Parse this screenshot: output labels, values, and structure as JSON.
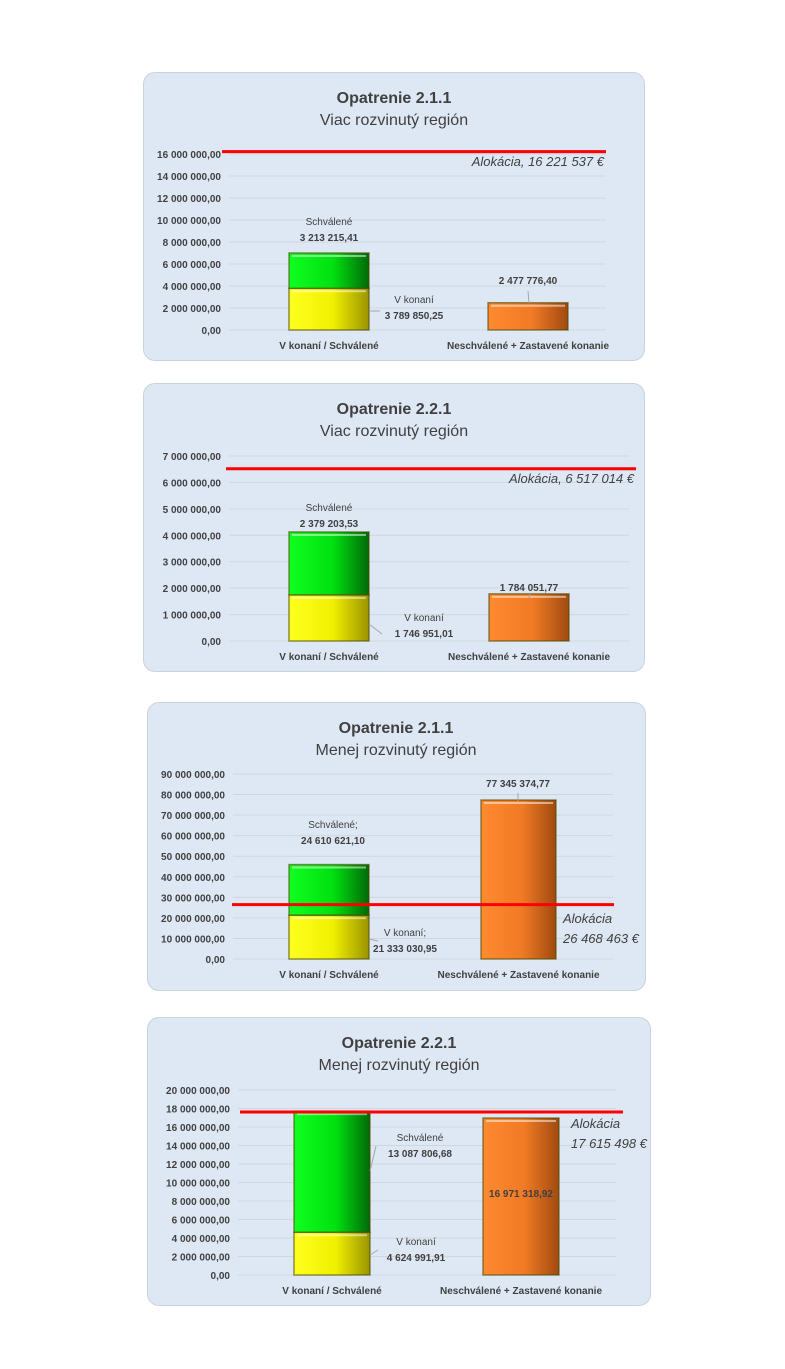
{
  "chart_data": [
    {
      "type": "bar",
      "title": "Opatrenie 2.1.1",
      "subtitle": "Viac rozvinutý región",
      "categories": [
        "V konaní / Schválené",
        "Neschválené + Zastavené konanie"
      ],
      "series": [
        {
          "name": "V konaní",
          "label_name": "V konaní",
          "label_value": "3 789 850,25",
          "values": [
            3789850.25,
            0
          ]
        },
        {
          "name": "Schválené",
          "label_name": "Schválené",
          "label_value": "3 213 215,41",
          "values": [
            3213215.41,
            0
          ]
        },
        {
          "name": "Neschválené + Zastavené konanie",
          "label_value": "2 477 776,40",
          "values": [
            0,
            2477776.4
          ]
        }
      ],
      "ylim": [
        0,
        16000000
      ],
      "ytick_step": 2000000,
      "yticks": [
        "0,00",
        "2 000 000,00",
        "4 000 000,00",
        "6 000 000,00",
        "8 000 000,00",
        "10 000 000,00",
        "12 000 000,00",
        "14 000 000,00",
        "16 000 000,00"
      ],
      "allocation": {
        "value": 16221537,
        "label_lines": [
          "Alokácia, 16 221 537 €"
        ]
      },
      "grid": true
    },
    {
      "type": "bar",
      "title": "Opatrenie 2.2.1",
      "subtitle": "Viac rozvinutý región",
      "categories": [
        "V konaní / Schválené",
        "Neschválené + Zastavené konanie"
      ],
      "series": [
        {
          "name": "V konaní",
          "label_name": "V konaní",
          "label_value": "1 746 951,01",
          "values": [
            1746951.01,
            0
          ]
        },
        {
          "name": "Schválené",
          "label_name": "Schválené",
          "label_value": "2 379 203,53",
          "values": [
            2379203.53,
            0
          ]
        },
        {
          "name": "Neschválené + Zastavené konanie",
          "label_value": "1 784 051,77",
          "values": [
            0,
            1784051.77
          ]
        }
      ],
      "ylim": [
        0,
        7000000
      ],
      "ytick_step": 1000000,
      "yticks": [
        "0,00",
        "1 000 000,00",
        "2 000 000,00",
        "3 000 000,00",
        "4 000 000,00",
        "5 000 000,00",
        "6 000 000,00",
        "7 000 000,00"
      ],
      "allocation": {
        "value": 6517014,
        "label_lines": [
          "Alokácia, 6 517 014 €"
        ]
      },
      "grid": true
    },
    {
      "type": "bar",
      "title": "Opatrenie 2.1.1",
      "subtitle": "Menej rozvinutý región",
      "categories": [
        "V konaní / Schválené",
        "Neschválené + Zastavené konanie"
      ],
      "series": [
        {
          "name": "V konaní",
          "label_name": "V konaní;",
          "label_value": "21 333 030,95",
          "values": [
            21333030.95,
            0
          ]
        },
        {
          "name": "Schválené",
          "label_name": "Schválené;",
          "label_value": "24 610 621,10",
          "values": [
            24610621.1,
            0
          ]
        },
        {
          "name": "Neschválené + Zastavené konanie",
          "label_value": "77 345 374,77",
          "values": [
            0,
            77345374.77
          ]
        }
      ],
      "ylim": [
        0,
        90000000
      ],
      "ytick_step": 10000000,
      "yticks": [
        "0,00",
        "10 000 000,00",
        "20 000 000,00",
        "30 000 000,00",
        "40 000 000,00",
        "50 000 000,00",
        "60 000 000,00",
        "70 000 000,00",
        "80 000 000,00",
        "90 000 000,00"
      ],
      "allocation": {
        "value": 26468463,
        "label_lines": [
          "Alokácia",
          "26 468 463 €"
        ]
      },
      "grid": true
    },
    {
      "type": "bar",
      "title": "Opatrenie 2.2.1",
      "subtitle": "Menej rozvinutý región",
      "categories": [
        "V konaní / Schválené",
        "Neschválené + Zastavené konanie"
      ],
      "series": [
        {
          "name": "V konaní",
          "label_name": "V konaní",
          "label_value": "4 624 991,91",
          "values": [
            4624991.91,
            0
          ]
        },
        {
          "name": "Schválené",
          "label_name": "Schválené",
          "label_value": "13 087 806,68",
          "values": [
            13087806.68,
            0
          ]
        },
        {
          "name": "Neschválené + Zastavené konanie",
          "label_value": "16 971 318,92",
          "values": [
            0,
            16971318.92
          ]
        }
      ],
      "ylim": [
        0,
        20000000
      ],
      "ytick_step": 2000000,
      "yticks": [
        "0,00",
        "2 000 000,00",
        "4 000 000,00",
        "6 000 000,00",
        "8 000 000,00",
        "10 000 000,00",
        "12 000 000,00",
        "14 000 000,00",
        "16 000 000,00",
        "18 000 000,00",
        "20 000 000,00"
      ],
      "allocation": {
        "value": 17615498,
        "label_lines": [
          "Alokácia",
          "17 615 498 €"
        ]
      },
      "grid": true
    }
  ],
  "colors": {
    "v_konani": "#ffff00",
    "schvalene": "#00ee18",
    "neschvalene": "#ff8a30",
    "allocation": "#ff0000",
    "card_bg": "#dee8f4"
  }
}
